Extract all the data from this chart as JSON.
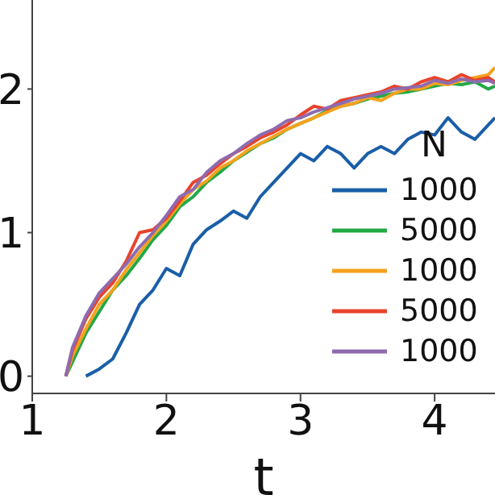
{
  "chart_data": {
    "type": "line",
    "xlabel": "t",
    "legend_title": "N",
    "legend": "right",
    "grid": false,
    "marker": "none",
    "line_style": "solid",
    "xlim": [
      1,
      4.45
    ],
    "ylim": [
      -0.12,
      2.62
    ],
    "xticks": [
      1,
      2,
      3,
      4
    ],
    "yticks": [
      0,
      1,
      2
    ],
    "series": [
      {
        "name": "1000",
        "color": "#1a5ea8",
        "x": [
          1.4,
          1.5,
          1.6,
          1.7,
          1.8,
          1.9,
          2.0,
          2.1,
          2.2,
          2.3,
          2.4,
          2.5,
          2.6,
          2.7,
          2.8,
          2.9,
          3.0,
          3.1,
          3.2,
          3.3,
          3.4,
          3.5,
          3.6,
          3.7,
          3.8,
          3.9,
          4.0,
          4.1,
          4.2,
          4.3,
          4.4,
          4.45
        ],
        "values": [
          0,
          0.05,
          0.12,
          0.3,
          0.5,
          0.6,
          0.75,
          0.7,
          0.92,
          1.02,
          1.08,
          1.15,
          1.1,
          1.25,
          1.35,
          1.45,
          1.55,
          1.5,
          1.6,
          1.55,
          1.45,
          1.55,
          1.6,
          1.55,
          1.65,
          1.7,
          1.68,
          1.8,
          1.7,
          1.65,
          1.75,
          1.8
        ]
      },
      {
        "name": "5000",
        "color": "#22a846",
        "x": [
          1.25,
          1.3,
          1.4,
          1.5,
          1.6,
          1.7,
          1.8,
          1.9,
          2.0,
          2.1,
          2.2,
          2.3,
          2.4,
          2.5,
          2.6,
          2.7,
          2.8,
          2.9,
          3.0,
          3.1,
          3.2,
          3.3,
          3.4,
          3.5,
          3.6,
          3.7,
          3.8,
          3.9,
          4.0,
          4.1,
          4.2,
          4.3,
          4.4,
          4.45
        ],
        "values": [
          0,
          0.1,
          0.3,
          0.45,
          0.6,
          0.7,
          0.82,
          0.95,
          1.05,
          1.18,
          1.25,
          1.35,
          1.42,
          1.5,
          1.56,
          1.62,
          1.66,
          1.72,
          1.76,
          1.8,
          1.85,
          1.88,
          1.9,
          1.93,
          1.95,
          1.97,
          1.98,
          2.0,
          2.02,
          2.04,
          2.03,
          2.05,
          2.0,
          2.02
        ]
      },
      {
        "name": "1000",
        "color": "#f5a21e",
        "x": [
          1.25,
          1.3,
          1.4,
          1.5,
          1.6,
          1.7,
          1.8,
          1.9,
          2.0,
          2.1,
          2.2,
          2.3,
          2.4,
          2.5,
          2.6,
          2.7,
          2.8,
          2.9,
          3.0,
          3.1,
          3.2,
          3.3,
          3.4,
          3.5,
          3.6,
          3.7,
          3.8,
          3.9,
          4.0,
          4.1,
          4.2,
          4.3,
          4.4,
          4.45
        ],
        "values": [
          0,
          0.14,
          0.33,
          0.5,
          0.6,
          0.74,
          0.86,
          0.98,
          1.08,
          1.2,
          1.3,
          1.36,
          1.45,
          1.5,
          1.57,
          1.62,
          1.67,
          1.72,
          1.76,
          1.8,
          1.84,
          1.88,
          1.9,
          1.94,
          1.92,
          1.97,
          2.0,
          2.0,
          2.04,
          2.03,
          2.06,
          2.08,
          2.1,
          2.15
        ]
      },
      {
        "name": "5000",
        "color": "#e8432b",
        "x": [
          1.25,
          1.3,
          1.4,
          1.5,
          1.6,
          1.7,
          1.8,
          1.9,
          2.0,
          2.1,
          2.2,
          2.3,
          2.4,
          2.5,
          2.6,
          2.7,
          2.8,
          2.9,
          3.0,
          3.1,
          3.2,
          3.3,
          3.4,
          3.5,
          3.6,
          3.7,
          3.8,
          3.9,
          4.0,
          4.1,
          4.2,
          4.3,
          4.4,
          4.45
        ],
        "values": [
          0,
          0.18,
          0.4,
          0.55,
          0.65,
          0.8,
          1.0,
          1.02,
          1.1,
          1.22,
          1.35,
          1.4,
          1.48,
          1.55,
          1.6,
          1.66,
          1.7,
          1.75,
          1.82,
          1.88,
          1.86,
          1.92,
          1.94,
          1.96,
          1.98,
          2.02,
          2.0,
          2.05,
          2.08,
          2.05,
          2.1,
          2.06,
          2.08,
          2.05
        ]
      },
      {
        "name": "1000",
        "color": "#8e6bb0",
        "x": [
          1.25,
          1.3,
          1.4,
          1.5,
          1.6,
          1.7,
          1.8,
          1.9,
          2.0,
          2.1,
          2.2,
          2.3,
          2.4,
          2.5,
          2.6,
          2.7,
          2.8,
          2.9,
          3.0,
          3.1,
          3.2,
          3.3,
          3.4,
          3.5,
          3.6,
          3.7,
          3.8,
          3.9,
          4.0,
          4.1,
          4.2,
          4.3,
          4.4,
          4.45
        ],
        "values": [
          0,
          0.2,
          0.42,
          0.58,
          0.68,
          0.78,
          0.9,
          1.0,
          1.12,
          1.25,
          1.3,
          1.42,
          1.5,
          1.55,
          1.62,
          1.68,
          1.72,
          1.78,
          1.8,
          1.84,
          1.87,
          1.9,
          1.93,
          1.95,
          1.97,
          2.0,
          2.01,
          2.02,
          2.06,
          2.04,
          2.07,
          2.05,
          2.06,
          2.04
        ]
      }
    ]
  }
}
